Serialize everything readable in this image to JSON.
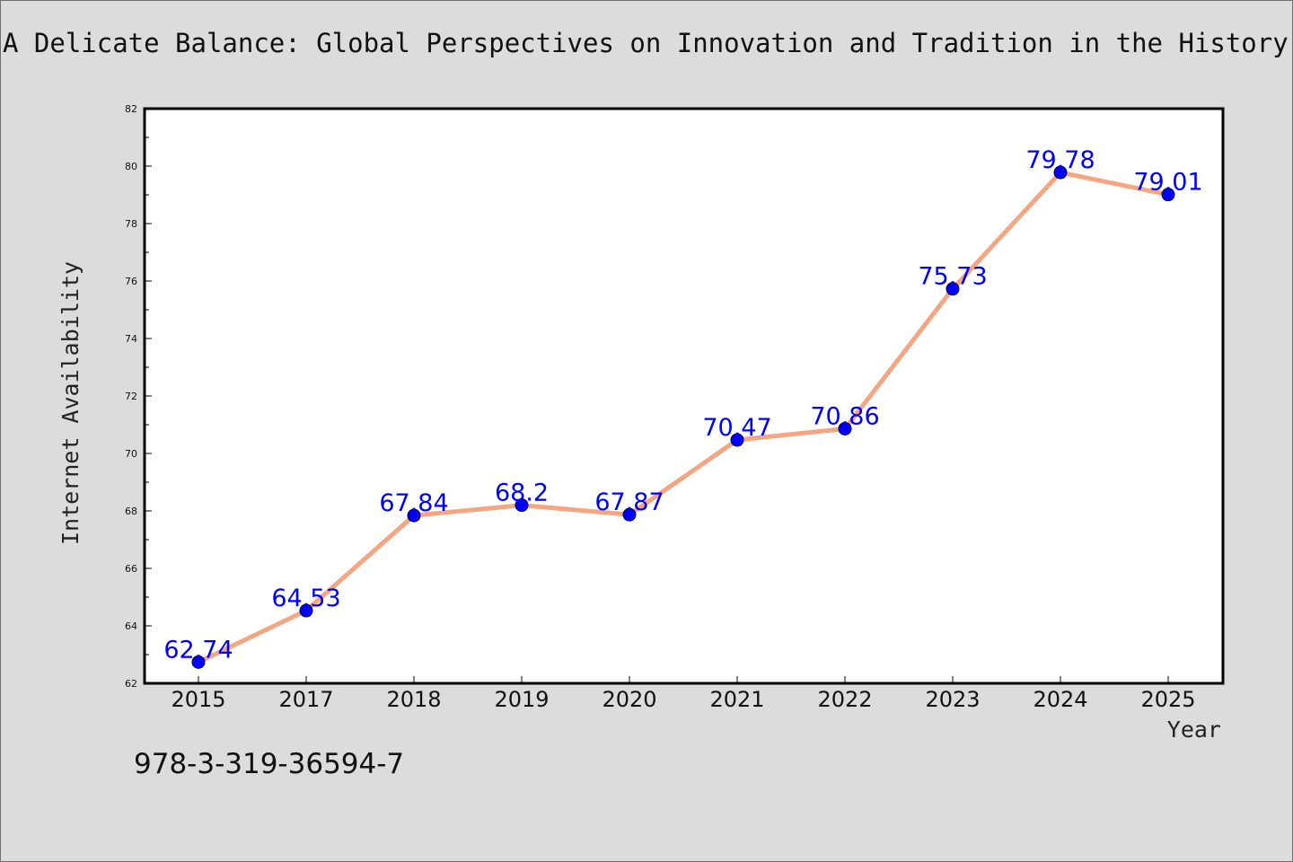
{
  "chart_data": {
    "type": "line",
    "title": "A Delicate Balance: Global Perspectives on Innovation and Tradition in the History",
    "xlabel": "Year",
    "ylabel": "Internet Availability",
    "categories": [
      "2015",
      "2017",
      "2018",
      "2019",
      "2020",
      "2021",
      "2022",
      "2023",
      "2024",
      "2025"
    ],
    "series": [
      {
        "values": [
          62.74,
          64.53,
          67.84,
          68.2,
          67.87,
          70.47,
          70.86,
          75.73,
          79.78,
          79.01
        ],
        "data_labels": [
          "62.74",
          "64.53",
          "67.84",
          "68.2",
          "67.87",
          "70.47",
          "70.86",
          "75.73",
          "79.78",
          "79.01"
        ]
      }
    ],
    "ylim": [
      62,
      82
    ],
    "yticks": [
      "62",
      "64",
      "66",
      "68",
      "70",
      "72",
      "74",
      "76",
      "78",
      "80",
      "82"
    ],
    "grid": false,
    "legend": "none",
    "line_color": "#f4a582",
    "marker_color": "#0000ff",
    "label_color": "#0000ff",
    "background": "#dcdcdc",
    "plot_background": "#ffffff"
  },
  "footer": {
    "isbn": "978-3-319-36594-7"
  }
}
